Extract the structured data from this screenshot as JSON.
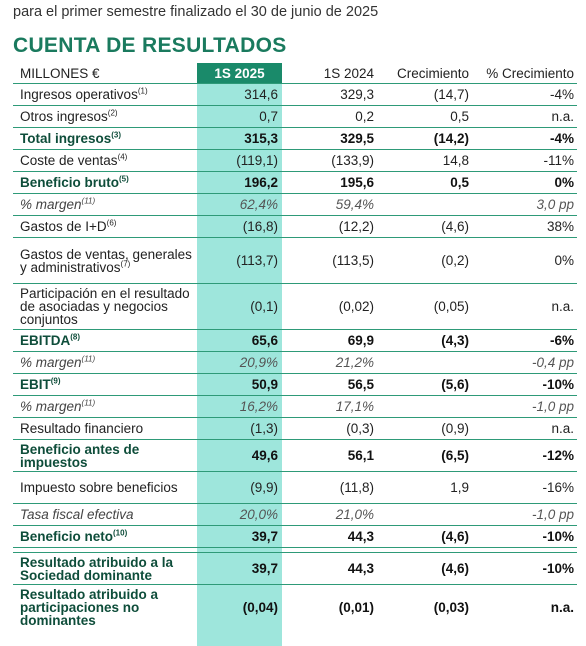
{
  "subtitle": "para el primer semestre finalizado el 30 de junio de 2025",
  "title": "CUENTA DE RESULTADOS",
  "colors": {
    "accent": "#1a8a6a",
    "highlight": "#9ee6dc",
    "title": "#1a7a5e"
  },
  "table": {
    "headers": [
      "MILLONES €",
      "1S 2025",
      "1S 2024",
      "Crecimiento",
      "% Crecimiento"
    ],
    "rows": [
      {
        "label": "Ingresos operativos",
        "note": "(1)",
        "v2025": "314,6",
        "v2024": "329,3",
        "growth": "(14,7)",
        "pct": "-4%"
      },
      {
        "label": "Otros ingresos",
        "note": "(2)",
        "v2025": "0,7",
        "v2024": "0,2",
        "growth": "0,5",
        "pct": "n.a."
      },
      {
        "label": "Total ingresos",
        "note": "(3)",
        "v2025": "315,3",
        "v2024": "329,5",
        "growth": "(14,2)",
        "pct": "-4%"
      },
      {
        "label": "Coste de ventas",
        "note": "(4)",
        "v2025": "(119,1)",
        "v2024": "(133,9)",
        "growth": "14,8",
        "pct": "-11%"
      },
      {
        "label": "Beneficio bruto",
        "note": "(5)",
        "v2025": "196,2",
        "v2024": "195,6",
        "growth": "0,5",
        "pct": "0%"
      },
      {
        "label": "% margen",
        "note": "(11)",
        "v2025": "62,4%",
        "v2024": "59,4%",
        "growth": "",
        "pct": "3,0 pp"
      },
      {
        "label": "Gastos de I+D",
        "note": "(6)",
        "v2025": "(16,8)",
        "v2024": "(12,2)",
        "growth": "(4,6)",
        "pct": "38%"
      },
      {
        "label": "Gastos de ventas, generales y administrativos",
        "note": "(7)",
        "v2025": "(113,7)",
        "v2024": "(113,5)",
        "growth": "(0,2)",
        "pct": "0%"
      },
      {
        "label": "Participación en el resultado de asociadas y negocios conjuntos",
        "note": "",
        "v2025": "(0,1)",
        "v2024": "(0,02)",
        "growth": "(0,05)",
        "pct": "n.a."
      },
      {
        "label": "EBITDA",
        "note": "(8)",
        "v2025": "65,6",
        "v2024": "69,9",
        "growth": "(4,3)",
        "pct": "-6%"
      },
      {
        "label": "% margen",
        "note": "(11)",
        "v2025": "20,9%",
        "v2024": "21,2%",
        "growth": "",
        "pct": "-0,4 pp"
      },
      {
        "label": "EBIT",
        "note": "(9)",
        "v2025": "50,9",
        "v2024": "56,5",
        "growth": "(5,6)",
        "pct": "-10%"
      },
      {
        "label": "% margen",
        "note": "(11)",
        "v2025": "16,2%",
        "v2024": "17,1%",
        "growth": "",
        "pct": "-1,0 pp"
      },
      {
        "label": "Resultado financiero",
        "note": "",
        "v2025": "(1,3)",
        "v2024": "(0,3)",
        "growth": "(0,9)",
        "pct": "n.a."
      },
      {
        "label": "Beneficio antes de impuestos",
        "note": "",
        "v2025": "49,6",
        "v2024": "56,1",
        "growth": "(6,5)",
        "pct": "-12%"
      },
      {
        "label": "Impuesto sobre beneficios",
        "note": "",
        "v2025": "(9,9)",
        "v2024": "(11,8)",
        "growth": "1,9",
        "pct": "-16%"
      },
      {
        "label": "Tasa fiscal efectiva",
        "note": "",
        "v2025": "20,0%",
        "v2024": "21,0%",
        "growth": "",
        "pct": "-1,0 pp"
      },
      {
        "label": "Beneficio neto",
        "note": "(10)",
        "v2025": "39,7",
        "v2024": "44,3",
        "growth": "(4,6)",
        "pct": "-10%"
      },
      {
        "label": "Resultado atribuido a la Sociedad dominante",
        "note": "",
        "v2025": "39,7",
        "v2024": "44,3",
        "growth": "(4,6)",
        "pct": "-10%"
      },
      {
        "label": "Resultado atribuido a participaciones no dominantes",
        "note": "",
        "v2025": "(0,04)",
        "v2024": "(0,01)",
        "growth": "(0,03)",
        "pct": "n.a."
      }
    ]
  }
}
